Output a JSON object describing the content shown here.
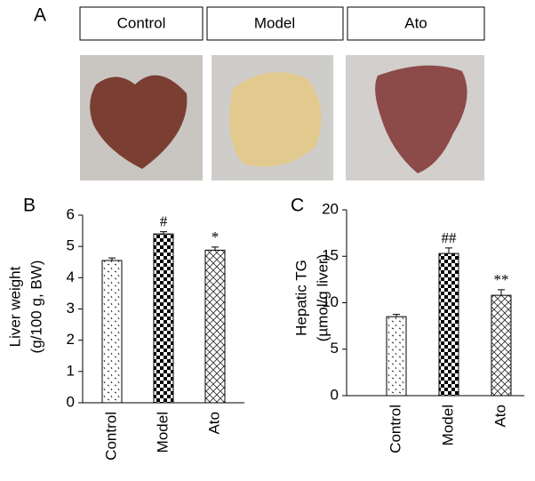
{
  "panel_labels": [
    "A",
    "B",
    "C"
  ],
  "photo_labels": [
    "Control",
    "Model",
    "Ato"
  ],
  "chart_data": [
    {
      "type": "bar",
      "ylabel": [
        "Liver weight",
        "(g/100 g, BW)"
      ],
      "categories": [
        "Control",
        "Model",
        "Ato"
      ],
      "values": [
        4.55,
        5.4,
        4.88
      ],
      "errors": [
        0.08,
        0.07,
        0.1
      ],
      "annotations": [
        null,
        "#",
        "*"
      ],
      "ylim": [
        0,
        6
      ],
      "yticks": [
        0,
        1,
        2,
        3,
        4,
        5,
        6
      ]
    },
    {
      "type": "bar",
      "ylabel": [
        "Hepatic TG",
        "(µmol/g liver)"
      ],
      "categories": [
        "Control",
        "Model",
        "Ato"
      ],
      "values": [
        8.5,
        15.3,
        10.8
      ],
      "errors": [
        0.25,
        0.6,
        0.6
      ],
      "annotations": [
        null,
        "##",
        "**"
      ],
      "ylim": [
        0,
        20
      ],
      "yticks": [
        0,
        5,
        10,
        15,
        20
      ]
    }
  ]
}
